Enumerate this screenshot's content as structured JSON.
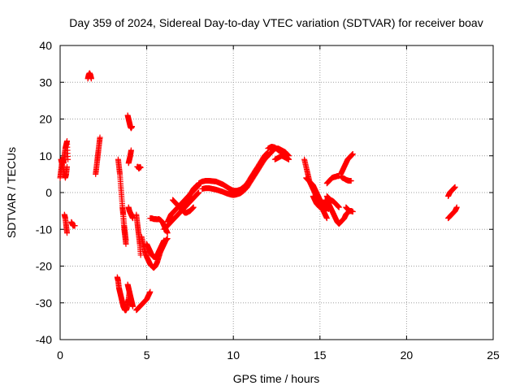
{
  "chart_data": {
    "type": "scatter",
    "title": "Day 359 of 2024, Sidereal Day-to-day VTEC variation (SDTVAR) for receiver boav",
    "xlabel": "GPS time / hours",
    "ylabel": "SDTVAR / TECUs",
    "xlim": [
      0,
      25
    ],
    "ylim": [
      -40,
      40
    ],
    "xticks": [
      0,
      5,
      10,
      15,
      20,
      25
    ],
    "yticks": [
      -40,
      -30,
      -20,
      -10,
      0,
      10,
      20,
      30,
      40
    ],
    "grid": true,
    "marker": "+",
    "color": "#ff0000",
    "segments": [
      {
        "x": [
          0.0,
          0.05,
          0.1,
          0.15,
          0.2,
          0.25,
          0.3,
          0.35,
          0.4,
          0.45
        ],
        "y": [
          4,
          6,
          8,
          9,
          8,
          10,
          12,
          13,
          14,
          9
        ]
      },
      {
        "x": [
          0.05,
          0.1,
          0.2,
          0.3,
          0.35,
          0.4
        ],
        "y": [
          9,
          8,
          6,
          4,
          5,
          7
        ]
      },
      {
        "x": [
          0.25,
          0.3,
          0.35,
          0.4
        ],
        "y": [
          -6,
          -7,
          -9,
          -11
        ]
      },
      {
        "x": [
          0.65,
          0.7,
          0.75,
          0.8,
          0.85
        ],
        "y": [
          -8,
          -8.5,
          -9,
          -9,
          -9
        ]
      },
      {
        "x": [
          1.6,
          1.65,
          1.7,
          1.75,
          1.8
        ],
        "y": [
          31,
          32,
          32.5,
          32,
          31
        ]
      },
      {
        "x": [
          2.05,
          2.1,
          2.15,
          2.2,
          2.25,
          2.3
        ],
        "y": [
          5,
          7,
          9,
          11,
          13,
          15
        ]
      },
      {
        "x": [
          3.35,
          3.4,
          3.45,
          3.5,
          3.55,
          3.6,
          3.65,
          3.7,
          3.75,
          3.8
        ],
        "y": [
          9,
          7,
          5,
          2,
          -1,
          -4,
          -7,
          -10,
          -12,
          -14
        ]
      },
      {
        "x": [
          3.6,
          3.65,
          3.7,
          3.75,
          3.8
        ],
        "y": [
          -4,
          -6,
          -9,
          -11,
          -13
        ]
      },
      {
        "x": [
          3.9,
          3.95,
          4.0,
          4.05,
          4.1,
          4.15
        ],
        "y": [
          21,
          20,
          19,
          18,
          17.5,
          18
        ]
      },
      {
        "x": [
          3.95,
          4.0,
          4.05,
          4.1
        ],
        "y": [
          8,
          9,
          10,
          11.5
        ]
      },
      {
        "x": [
          3.95,
          4.0,
          4.05,
          4.1,
          4.15,
          4.2
        ],
        "y": [
          -4,
          -5,
          -5.5,
          -6,
          -6.5,
          -7
        ]
      },
      {
        "x": [
          3.3,
          3.35,
          3.4,
          3.45,
          3.5,
          3.55,
          3.6,
          3.65,
          3.7,
          3.75,
          3.8,
          3.85,
          3.9,
          3.95,
          4.0
        ],
        "y": [
          -23,
          -24,
          -26,
          -27,
          -28,
          -29,
          -30,
          -31,
          -31.5,
          -32,
          -32,
          -31.5,
          -30,
          -29,
          -27
        ]
      },
      {
        "x": [
          3.9,
          3.95,
          4.0,
          4.05,
          4.1,
          4.15,
          4.2
        ],
        "y": [
          -25,
          -26,
          -27,
          -28,
          -29,
          -30,
          -31
        ]
      },
      {
        "x": [
          4.45,
          4.5,
          4.55,
          4.6,
          4.65
        ],
        "y": [
          7,
          7,
          6.5,
          7,
          6.8
        ]
      },
      {
        "x": [
          4.4,
          4.45,
          4.5,
          4.55,
          4.6,
          4.65
        ],
        "y": [
          -6,
          -8,
          -10,
          -12,
          -14,
          -17
        ]
      },
      {
        "x": [
          4.4,
          4.5,
          4.6,
          4.7,
          4.8,
          4.9,
          5.0,
          5.1,
          5.2
        ],
        "y": [
          -32,
          -31.5,
          -31,
          -30.5,
          -30,
          -29.5,
          -29,
          -28,
          -27
        ]
      },
      {
        "x": [
          4.7,
          4.8,
          4.9,
          5.0,
          5.1,
          5.2,
          5.3,
          5.4,
          5.5,
          5.6,
          5.7,
          5.8,
          5.9,
          6.0,
          6.1,
          6.2
        ],
        "y": [
          -12,
          -14,
          -16,
          -17.5,
          -18.5,
          -19.5,
          -20,
          -20.5,
          -20,
          -19,
          -17.5,
          -16,
          -15,
          -14,
          -13,
          -12.5
        ]
      },
      {
        "x": [
          5.0,
          5.1,
          5.2,
          5.3,
          5.4,
          5.5,
          5.6,
          5.7,
          5.8,
          5.9,
          6.0
        ],
        "y": [
          -14,
          -15,
          -16,
          -17,
          -17.5,
          -17.5,
          -17,
          -16,
          -15,
          -14,
          -13
        ]
      },
      {
        "x": [
          5.2,
          5.3,
          5.4,
          5.5,
          5.6,
          5.7,
          5.8,
          5.9,
          6.0,
          6.1,
          6.2
        ],
        "y": [
          -7,
          -7,
          -7.2,
          -7.2,
          -7.3,
          -7.2,
          -7.5,
          -8,
          -9,
          -10,
          -11
        ]
      },
      {
        "x": [
          6.0,
          6.1,
          6.2,
          6.3,
          6.4,
          6.5,
          6.6,
          6.7,
          6.8,
          6.9,
          7.0,
          7.1,
          7.2,
          7.3,
          7.4,
          7.5,
          7.6,
          7.7,
          7.8,
          7.9,
          8.0
        ],
        "y": [
          -10,
          -9.5,
          -9,
          -8.5,
          -8,
          -7.5,
          -7,
          -6.5,
          -6,
          -5.5,
          -5,
          -4.5,
          -4,
          -3.5,
          -3,
          -2.5,
          -2,
          -1.5,
          -1,
          -0.5,
          0
        ]
      },
      {
        "x": [
          6.2,
          6.3,
          6.4,
          6.5,
          6.6,
          6.7,
          6.8,
          6.9,
          7.0,
          7.1,
          7.2,
          7.3,
          7.4,
          7.5,
          7.6,
          7.7,
          7.8,
          7.9,
          8.0
        ],
        "y": [
          -8,
          -7,
          -6,
          -5.5,
          -5,
          -4.5,
          -4,
          -3.5,
          -3,
          -2.5,
          -2,
          -1.5,
          -1,
          -0.5,
          0,
          0.5,
          1,
          1.5,
          2
        ]
      },
      {
        "x": [
          6.5,
          6.6,
          6.7,
          6.8,
          6.9,
          7.0,
          7.1,
          7.2,
          7.3,
          7.4,
          7.5,
          7.6,
          7.7
        ],
        "y": [
          -2,
          -2.5,
          -3,
          -3.5,
          -4,
          -4.5,
          -5,
          -5.5,
          -5.5,
          -5.2,
          -5,
          -4.5,
          -4
        ]
      },
      {
        "x": [
          7.0,
          7.1,
          7.2,
          7.3,
          7.4,
          7.5,
          7.6,
          7.7,
          7.8,
          7.9
        ],
        "y": [
          -5,
          -4.5,
          -3.5,
          -2.5,
          -1.5,
          -0.5,
          0.2,
          1,
          1.5,
          2
        ]
      },
      {
        "x": [
          8.0,
          8.2,
          8.4,
          8.6,
          8.8,
          9.0,
          9.2,
          9.4,
          9.6,
          9.8,
          10.0,
          10.2,
          10.4,
          10.6,
          10.8,
          11.0,
          11.2,
          11.4,
          11.6,
          11.8,
          12.0
        ],
        "y": [
          2.5,
          3,
          3.2,
          3.2,
          3.1,
          3,
          2.6,
          2.2,
          1.6,
          1,
          0.5,
          0.5,
          0.8,
          1.5,
          2.5,
          4,
          5.5,
          7,
          8.5,
          10,
          11
        ]
      },
      {
        "x": [
          8.2,
          8.4,
          8.6,
          8.8,
          9.0,
          9.2,
          9.4,
          9.6,
          9.8,
          10.0,
          10.2,
          10.4,
          10.6,
          10.8,
          11.0,
          11.2,
          11.4,
          11.6,
          11.8,
          12.0,
          12.2
        ],
        "y": [
          1,
          1.2,
          1.2,
          1,
          0.8,
          0.5,
          0.2,
          -0.2,
          -0.5,
          -0.7,
          -0.5,
          -0.2,
          0.5,
          1.5,
          3,
          4.5,
          6,
          7.5,
          9,
          10,
          11
        ]
      },
      {
        "x": [
          11.6,
          11.8,
          12.0,
          12.2,
          12.4,
          12.6,
          12.8,
          13.0,
          13.2
        ],
        "y": [
          8,
          9,
          10,
          11,
          12,
          12,
          11.5,
          11,
          10
        ]
      },
      {
        "x": [
          12.0,
          12.2,
          12.4,
          12.6,
          12.8,
          13.0,
          13.2
        ],
        "y": [
          12,
          12.5,
          12.3,
          11.5,
          11,
          10,
          9
        ]
      },
      {
        "x": [
          12.4,
          12.6,
          12.8,
          13.0,
          13.2
        ],
        "y": [
          9,
          9.5,
          10,
          9.5,
          9
        ]
      },
      {
        "x": [
          14.1,
          14.2,
          14.3,
          14.4,
          14.5,
          14.6,
          14.7,
          14.8,
          14.9,
          15.0,
          15.1,
          15.2,
          15.3,
          15.4
        ],
        "y": [
          9,
          7,
          5,
          3,
          2,
          1,
          0,
          -1,
          -2,
          -3,
          -4,
          -5,
          -6,
          -7
        ]
      },
      {
        "x": [
          14.2,
          14.3,
          14.4,
          14.5,
          14.6,
          14.7,
          14.8,
          14.9,
          15.0,
          15.1,
          15.2,
          15.3,
          15.4,
          15.5
        ],
        "y": [
          4,
          3.5,
          3,
          2.5,
          2,
          1,
          0,
          -1,
          -2,
          -2.5,
          -3,
          -3.5,
          -4,
          -4.5
        ]
      },
      {
        "x": [
          14.6,
          14.7,
          14.8,
          14.9,
          15.0,
          15.1,
          15.2,
          15.3
        ],
        "y": [
          -1,
          -2,
          -3,
          -3.5,
          -4,
          -4.2,
          -4.5,
          -5
        ]
      },
      {
        "x": [
          15.3,
          15.4,
          15.5,
          15.6,
          15.7,
          15.8,
          15.9,
          16.0,
          16.1,
          16.2,
          16.3,
          16.4,
          16.5,
          16.6,
          16.7,
          16.8
        ],
        "y": [
          -2,
          -2.5,
          -3,
          -4,
          -5,
          -6,
          -7,
          -8,
          -8.5,
          -8,
          -7.5,
          -7,
          -6,
          -5.5,
          -5,
          -5
        ]
      },
      {
        "x": [
          15.4,
          15.5,
          15.6,
          15.7,
          15.8,
          15.9,
          16.0,
          16.1
        ],
        "y": [
          -1,
          -1.5,
          -2,
          -2.2,
          -2.5,
          -3,
          -3.5,
          -4
        ]
      },
      {
        "x": [
          15.4,
          15.5,
          15.6,
          15.7,
          15.8,
          15.9,
          16.0,
          16.1
        ],
        "y": [
          2.5,
          3,
          3.5,
          4,
          4.2,
          4.3,
          4.5,
          4.5
        ]
      },
      {
        "x": [
          16.2,
          16.3,
          16.4,
          16.5,
          16.6,
          16.7,
          16.8,
          16.9
        ],
        "y": [
          5,
          6,
          7,
          8,
          9,
          9.5,
          10,
          10.5
        ]
      },
      {
        "x": [
          16.2,
          16.3,
          16.4,
          16.5,
          16.6,
          16.7,
          16.8
        ],
        "y": [
          4.5,
          4,
          3.8,
          3.5,
          3.3,
          3.2,
          3.2
        ]
      },
      {
        "x": [
          16.5,
          16.6,
          16.7,
          16.8,
          16.9
        ],
        "y": [
          -4,
          -4.5,
          -5,
          -5,
          -5.2
        ]
      },
      {
        "x": [
          22.4,
          22.5,
          22.6,
          22.7,
          22.8
        ],
        "y": [
          -1,
          0,
          0.5,
          1,
          1.5
        ]
      },
      {
        "x": [
          22.4,
          22.5,
          22.6,
          22.7,
          22.8,
          22.9
        ],
        "y": [
          -7,
          -6.5,
          -6,
          -5.5,
          -5,
          -4
        ]
      }
    ]
  }
}
